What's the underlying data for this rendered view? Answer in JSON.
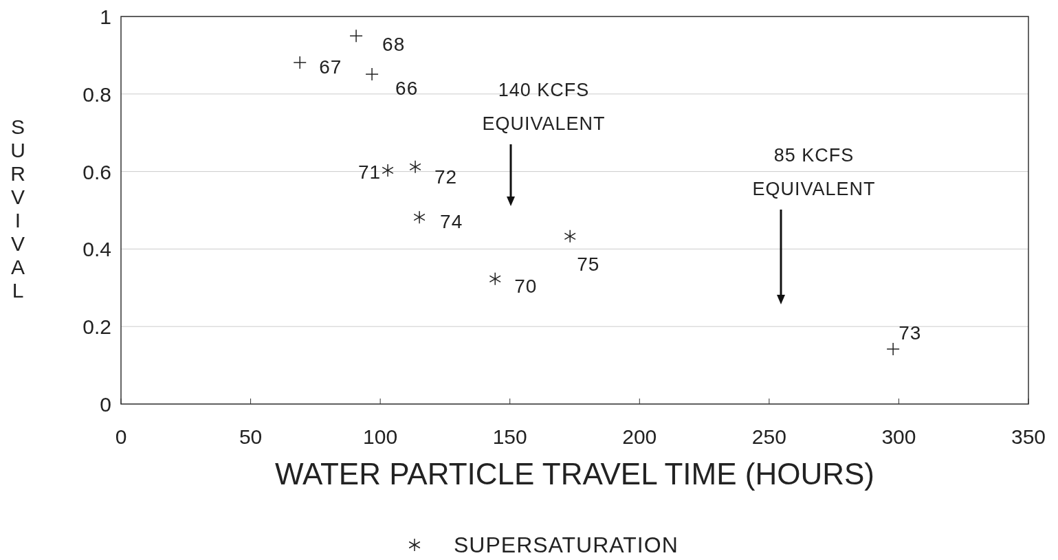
{
  "chart_data": {
    "type": "scatter",
    "xlabel": "WATER PARTICLE TRAVEL TIME (HOURS)",
    "ylabel": "SURVIVAL",
    "xlim": [
      0,
      350
    ],
    "xticks": [
      0,
      50,
      100,
      150,
      200,
      250,
      300,
      350
    ],
    "ylim": [
      0,
      1
    ],
    "yticks": [
      0,
      0.2,
      0.4,
      0.6,
      0.8,
      1
    ],
    "grid": "y",
    "legend": "bottom",
    "series": [
      {
        "marker": "cross",
        "color": "#222222",
        "x": [
          69,
          90.7,
          96.8,
          297.8
        ],
        "values": [
          0.881,
          0.95,
          0.851,
          0.142
        ]
      },
      {
        "name": "SUPERSATURATION",
        "color": "#222222",
        "x": [
          102.9,
          113.5,
          115.1,
          144.3,
          173.2
        ],
        "values": [
          0.603,
          0.612,
          0.482,
          0.323,
          0.433
        ]
      }
    ],
    "annotations": [
      {
        "text": "67",
        "x": 69,
        "y": 0.881
      },
      {
        "text": "68",
        "x": 90.7,
        "y": 0.95
      },
      {
        "text": "66",
        "x": 96.8,
        "y": 0.851
      },
      {
        "text": "71",
        "x": 102.9,
        "y": 0.603
      },
      {
        "text": "72",
        "x": 113.5,
        "y": 0.612
      },
      {
        "text": "74",
        "x": 115.1,
        "y": 0.482
      },
      {
        "text": "70",
        "x": 144.3,
        "y": 0.323
      },
      {
        "text": "75",
        "x": 173.2,
        "y": 0.433
      },
      {
        "text": "73",
        "x": 297.8,
        "y": 0.142
      },
      "140 KCFS EQUIVALENT",
      "85 KCFS EQUIVALENT"
    ]
  }
}
